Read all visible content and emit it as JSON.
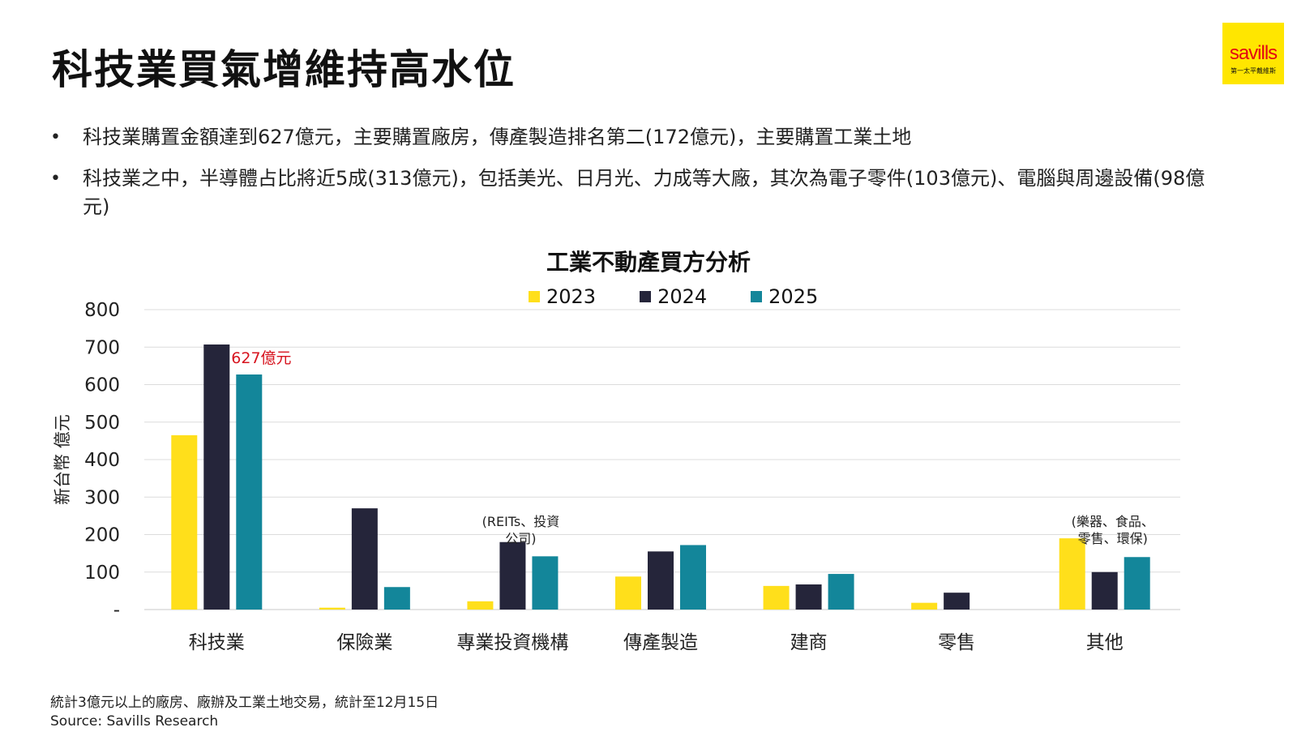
{
  "title": "科技業買氣增維持高水位",
  "logo": {
    "word": "savills",
    "sub": "第一太平戴維斯"
  },
  "bullets": [
    "科技業購置金額達到627億元，主要購置廠房，傳產製造排名第二(172億元)，主要購置工業土地",
    "科技業之中，半導體占比將近5成(313億元)，包括美光、日月光、力成等大廠，其次為電子零件(103億元)、電腦與周邊設備(98億元)"
  ],
  "footnote": {
    "note": "統計3億元以上的廠房、廠辦及工業土地交易，統計至12月15日",
    "source": "Source: Savills Research"
  },
  "chart_data": {
    "type": "bar",
    "title": "工業不動產買方分析",
    "ylabel": "新台幣 億元",
    "ylim": [
      0,
      800
    ],
    "yticks": [
      0,
      100,
      200,
      300,
      400,
      500,
      600,
      700,
      800
    ],
    "ytick_labels": [
      "-",
      "100",
      "200",
      "300",
      "400",
      "500",
      "600",
      "700",
      "800"
    ],
    "categories": [
      "科技業",
      "保險業",
      "專業投資機構",
      "傳產製造",
      "建商",
      "零售",
      "其他"
    ],
    "series": [
      {
        "name": "2023",
        "color": "#ffdf1b",
        "values": [
          465,
          5,
          22,
          88,
          63,
          18,
          190
        ]
      },
      {
        "name": "2024",
        "color": "#25253a",
        "values": [
          707,
          270,
          180,
          155,
          67,
          45,
          100
        ]
      },
      {
        "name": "2025",
        "color": "#13869a",
        "values": [
          627,
          60,
          142,
          172,
          95,
          0,
          140
        ]
      }
    ],
    "legend_position": "top",
    "grid": true,
    "annotations": [
      {
        "category": "科技業",
        "series": "2025",
        "text": "627億元",
        "color": "#d7141f"
      },
      {
        "category": "專業投資機構",
        "lines": [
          "(REITs、投資",
          "公司)"
        ]
      },
      {
        "category": "其他",
        "lines": [
          "(樂器、食品、",
          "零售、環保)"
        ]
      }
    ]
  }
}
